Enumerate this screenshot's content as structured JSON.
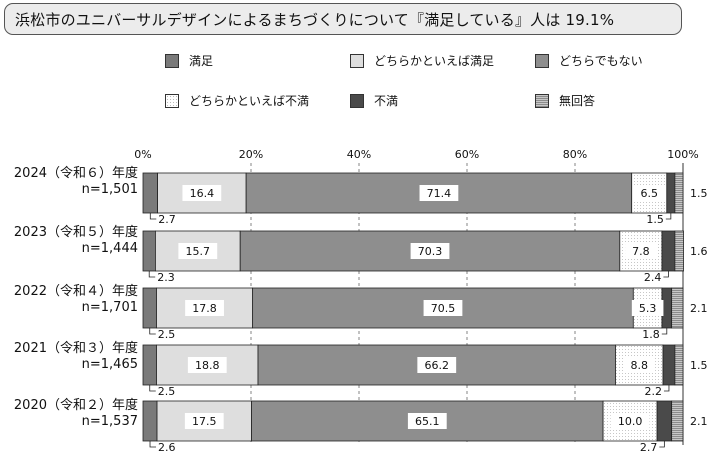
{
  "title": "浜松市のユニバーサルデザインによるまちづくりについて『満足している』人は 19.1%",
  "colors": {
    "satisfied": "#7a7a7a",
    "somewhat_satisfied": "#dedede",
    "neither": "#8e8e8e",
    "somewhat_dissatisfied": "#ffffff",
    "dissatisfied": "#4a4a4a",
    "no_answer": "#a8a8a8"
  },
  "legend": [
    {
      "key": "satisfied",
      "label": "満足",
      "icon": "solid-gray-swatch"
    },
    {
      "key": "somewhat_satisfied",
      "label": "どちらかといえば満足",
      "icon": "light-gray-swatch"
    },
    {
      "key": "neither",
      "label": "どちらでもない",
      "icon": "hatched-gray-swatch"
    },
    {
      "key": "somewhat_dissatisfied",
      "label": "どちらかといえば不満",
      "icon": "dotted-white-swatch"
    },
    {
      "key": "dissatisfied",
      "label": "不満",
      "icon": "dark-gray-swatch"
    },
    {
      "key": "no_answer",
      "label": "無回答",
      "icon": "hatched-swatch"
    }
  ],
  "chart_data": {
    "type": "bar",
    "orientation": "horizontal",
    "stacked": true,
    "xlim": [
      0,
      100
    ],
    "x_ticks": [
      "0%",
      "20%",
      "40%",
      "60%",
      "80%",
      "100%"
    ],
    "grid": true,
    "legend_position": "top",
    "categories": [
      {
        "year": "2024（令和６）年度",
        "n": "n=1,501"
      },
      {
        "year": "2023（令和５）年度",
        "n": "n=1,444"
      },
      {
        "year": "2022（令和４）年度",
        "n": "n=1,701"
      },
      {
        "year": "2021（令和３）年度",
        "n": "n=1,465"
      },
      {
        "year": "2020（令和２）年度",
        "n": "n=1,537"
      }
    ],
    "series": [
      {
        "key": "satisfied",
        "name": "満足",
        "values": [
          2.7,
          2.3,
          2.5,
          2.5,
          2.6
        ]
      },
      {
        "key": "somewhat_satisfied",
        "name": "どちらかといえば満足",
        "values": [
          16.4,
          15.7,
          17.8,
          18.8,
          17.5
        ]
      },
      {
        "key": "neither",
        "name": "どちらでもない",
        "values": [
          71.4,
          70.3,
          70.5,
          66.2,
          65.1
        ]
      },
      {
        "key": "somewhat_dissatisfied",
        "name": "どちらかといえば不満",
        "values": [
          6.5,
          7.8,
          5.3,
          8.8,
          10.0
        ]
      },
      {
        "key": "dissatisfied",
        "name": "不満",
        "values": [
          1.5,
          2.4,
          1.8,
          2.2,
          2.7
        ]
      },
      {
        "key": "no_answer",
        "name": "無回答",
        "values": [
          1.5,
          1.6,
          2.1,
          1.5,
          2.1
        ]
      }
    ],
    "data_labels": [
      [
        "2.7",
        "16.4",
        "71.4",
        "6.5",
        "1.5",
        "1.5"
      ],
      [
        "2.3",
        "15.7",
        "70.3",
        "7.8",
        "2.4",
        "1.6"
      ],
      [
        "2.5",
        "17.8",
        "70.5",
        "5.3",
        "1.8",
        "2.1"
      ],
      [
        "2.5",
        "18.8",
        "66.2",
        "8.8",
        "2.2",
        "1.5"
      ],
      [
        "2.6",
        "17.5",
        "65.1",
        "10.0",
        "2.7",
        "2.1"
      ]
    ]
  }
}
